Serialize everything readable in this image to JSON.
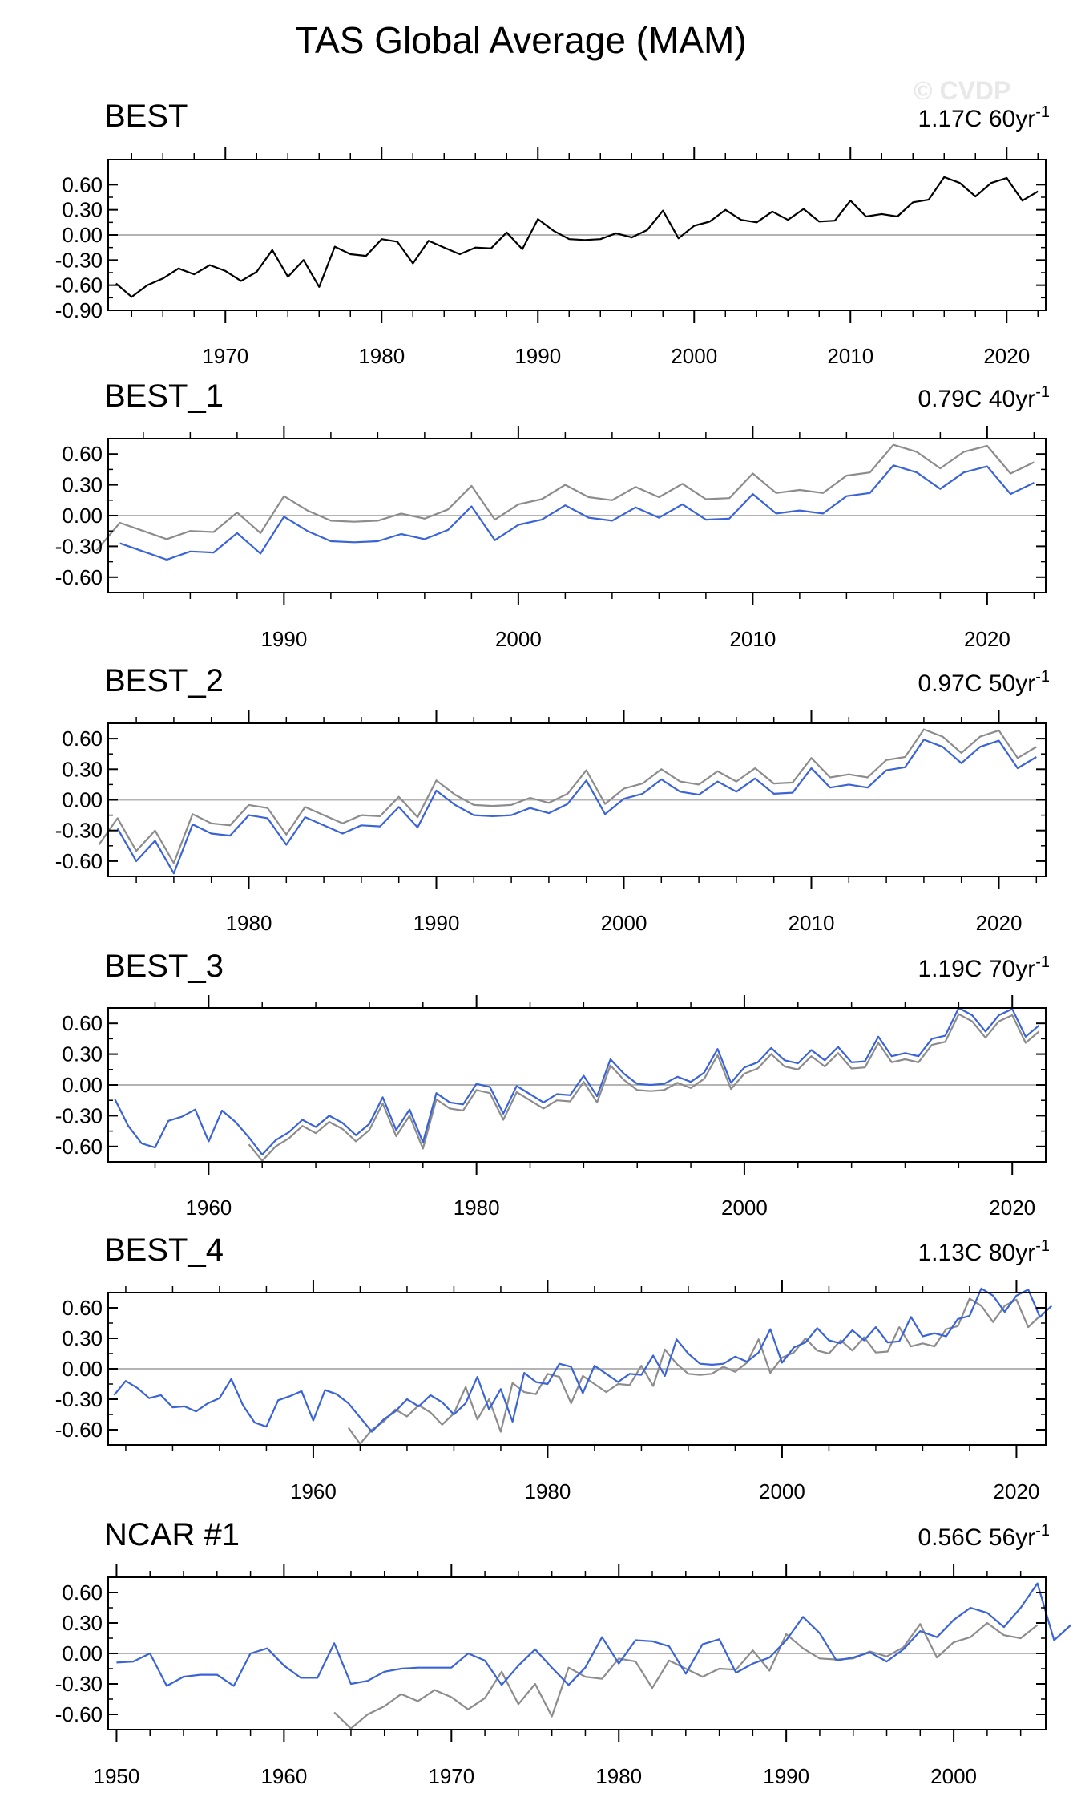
{
  "title": "TAS Global Average (MAM)",
  "watermark": "© CVDP",
  "colors": {
    "observed": "#000000",
    "reference": "#8c8c8c",
    "model": "#3a63d6",
    "zero": "#b4b4b4"
  },
  "chart_data": [
    {
      "type": "line",
      "title": "BEST",
      "trend_label": "1.17C 60yr",
      "trend_superscript": "-1",
      "xlim": [
        1962.5,
        2022.5
      ],
      "ylim": [
        -0.9,
        0.9
      ],
      "yticks": [
        "0.60",
        "0.30",
        "0.00",
        "-0.30",
        "-0.60",
        "-0.90"
      ],
      "xticks": [
        1970,
        1980,
        1990,
        2000,
        2010,
        2020
      ],
      "series": [
        {
          "role": "observed",
          "x_start": 1963,
          "values": [
            -0.58,
            -0.74,
            -0.6,
            -0.52,
            -0.4,
            -0.47,
            -0.36,
            -0.43,
            -0.55,
            -0.44,
            -0.18,
            -0.5,
            -0.3,
            -0.62,
            -0.14,
            -0.23,
            -0.25,
            -0.05,
            -0.08,
            -0.34,
            -0.07,
            -0.15,
            -0.23,
            -0.15,
            -0.16,
            0.03,
            -0.17,
            0.19,
            0.05,
            -0.05,
            -0.06,
            -0.05,
            0.02,
            -0.03,
            0.06,
            0.29,
            -0.04,
            0.11,
            0.16,
            0.3,
            0.18,
            0.15,
            0.28,
            0.18,
            0.31,
            0.16,
            0.17,
            0.41,
            0.22,
            0.25,
            0.22,
            0.39,
            0.42,
            0.69,
            0.62,
            0.46,
            0.62,
            0.68,
            0.41,
            0.52
          ]
        }
      ]
    },
    {
      "type": "line",
      "title": "BEST_1",
      "trend_label": "0.79C 40yr",
      "trend_superscript": "-1",
      "xlim": [
        1982.5,
        2022.5
      ],
      "ylim": [
        -0.75,
        0.75
      ],
      "yticks": [
        "0.60",
        "0.30",
        "0.00",
        "-0.30",
        "-0.60"
      ],
      "xticks": [
        1990,
        2000,
        2010,
        2020
      ],
      "series": [
        {
          "role": "reference",
          "x_start": 1982,
          "values": [
            -0.34,
            -0.07,
            -0.15,
            -0.23,
            -0.15,
            -0.16,
            0.03,
            -0.17,
            0.19,
            0.05,
            -0.05,
            -0.06,
            -0.05,
            0.02,
            -0.03,
            0.06,
            0.29,
            -0.04,
            0.11,
            0.16,
            0.3,
            0.18,
            0.15,
            0.28,
            0.18,
            0.31,
            0.16,
            0.17,
            0.41,
            0.22,
            0.25,
            0.22,
            0.39,
            0.42,
            0.69,
            0.62,
            0.46,
            0.62,
            0.68,
            0.41,
            0.52
          ]
        },
        {
          "role": "model",
          "x_start": 1983,
          "values": [
            -0.27,
            -0.35,
            -0.43,
            -0.35,
            -0.36,
            -0.17,
            -0.37,
            -0.01,
            -0.15,
            -0.25,
            -0.26,
            -0.25,
            -0.18,
            -0.23,
            -0.14,
            0.09,
            -0.24,
            -0.09,
            -0.04,
            0.1,
            -0.02,
            -0.05,
            0.08,
            -0.02,
            0.11,
            -0.04,
            -0.03,
            0.21,
            0.02,
            0.05,
            0.02,
            0.19,
            0.22,
            0.49,
            0.42,
            0.26,
            0.42,
            0.48,
            0.21,
            0.32
          ]
        }
      ]
    },
    {
      "type": "line",
      "title": "BEST_2",
      "trend_label": "0.97C 50yr",
      "trend_superscript": "-1",
      "xlim": [
        1972.5,
        2022.5
      ],
      "ylim": [
        -0.75,
        0.75
      ],
      "yticks": [
        "0.60",
        "0.30",
        "0.00",
        "-0.30",
        "-0.60"
      ],
      "xticks": [
        1980,
        1990,
        2000,
        2010,
        2020
      ],
      "series": [
        {
          "role": "reference",
          "x_start": 1972,
          "values": [
            -0.44,
            -0.18,
            -0.5,
            -0.3,
            -0.62,
            -0.14,
            -0.23,
            -0.25,
            -0.05,
            -0.08,
            -0.34,
            -0.07,
            -0.15,
            -0.23,
            -0.15,
            -0.16,
            0.03,
            -0.17,
            0.19,
            0.05,
            -0.05,
            -0.06,
            -0.05,
            0.02,
            -0.03,
            0.06,
            0.29,
            -0.04,
            0.11,
            0.16,
            0.3,
            0.18,
            0.15,
            0.28,
            0.18,
            0.31,
            0.16,
            0.17,
            0.41,
            0.22,
            0.25,
            0.22,
            0.39,
            0.42,
            0.69,
            0.62,
            0.46,
            0.62,
            0.68,
            0.41,
            0.52
          ]
        },
        {
          "role": "model",
          "x_start": 1973,
          "values": [
            -0.28,
            -0.6,
            -0.4,
            -0.72,
            -0.24,
            -0.33,
            -0.35,
            -0.15,
            -0.18,
            -0.44,
            -0.17,
            -0.25,
            -0.33,
            -0.25,
            -0.26,
            -0.07,
            -0.27,
            0.09,
            -0.05,
            -0.15,
            -0.16,
            -0.15,
            -0.08,
            -0.13,
            -0.04,
            0.19,
            -0.14,
            0.01,
            0.06,
            0.2,
            0.08,
            0.05,
            0.18,
            0.08,
            0.21,
            0.06,
            0.07,
            0.31,
            0.12,
            0.15,
            0.12,
            0.29,
            0.32,
            0.59,
            0.52,
            0.36,
            0.52,
            0.58,
            0.31,
            0.42
          ]
        }
      ]
    },
    {
      "type": "line",
      "title": "BEST_3",
      "trend_label": "1.19C 70yr",
      "trend_superscript": "-1",
      "xlim": [
        1952.5,
        2022.5
      ],
      "ylim": [
        -0.75,
        0.75
      ],
      "yticks": [
        "0.60",
        "0.30",
        "0.00",
        "-0.30",
        "-0.60"
      ],
      "xticks": [
        1960,
        1980,
        2000,
        2020
      ],
      "series": [
        {
          "role": "reference",
          "x_start": 1963,
          "values": [
            -0.58,
            -0.74,
            -0.6,
            -0.52,
            -0.4,
            -0.47,
            -0.36,
            -0.43,
            -0.55,
            -0.44,
            -0.18,
            -0.5,
            -0.3,
            -0.62,
            -0.14,
            -0.23,
            -0.25,
            -0.05,
            -0.08,
            -0.34,
            -0.07,
            -0.15,
            -0.23,
            -0.15,
            -0.16,
            0.03,
            -0.17,
            0.19,
            0.05,
            -0.05,
            -0.06,
            -0.05,
            0.02,
            -0.03,
            0.06,
            0.29,
            -0.04,
            0.11,
            0.16,
            0.3,
            0.18,
            0.15,
            0.28,
            0.18,
            0.31,
            0.16,
            0.17,
            0.41,
            0.22,
            0.25,
            0.22,
            0.39,
            0.42,
            0.69,
            0.62,
            0.46,
            0.62,
            0.68,
            0.41,
            0.52
          ]
        },
        {
          "role": "model",
          "x_start": 1953,
          "values": [
            -0.14,
            -0.4,
            -0.57,
            -0.61,
            -0.35,
            -0.31,
            -0.24,
            -0.55,
            -0.25,
            -0.36,
            -0.51,
            -0.68,
            -0.54,
            -0.46,
            -0.34,
            -0.41,
            -0.3,
            -0.37,
            -0.49,
            -0.38,
            -0.12,
            -0.44,
            -0.24,
            -0.56,
            -0.08,
            -0.17,
            -0.19,
            0.01,
            -0.02,
            -0.28,
            -0.01,
            -0.09,
            -0.17,
            -0.09,
            -0.1,
            0.09,
            -0.11,
            0.25,
            0.11,
            0.01,
            0.0,
            0.01,
            0.08,
            0.03,
            0.12,
            0.35,
            0.02,
            0.17,
            0.22,
            0.36,
            0.24,
            0.21,
            0.34,
            0.24,
            0.37,
            0.22,
            0.23,
            0.47,
            0.28,
            0.31,
            0.28,
            0.45,
            0.48,
            0.75,
            0.68,
            0.52,
            0.68,
            0.74,
            0.47,
            0.58
          ]
        }
      ]
    },
    {
      "type": "line",
      "title": "BEST_4",
      "trend_label": "1.13C 80yr",
      "trend_superscript": "-1",
      "xlim": [
        1942.5,
        2022.5
      ],
      "ylim": [
        -0.75,
        0.75
      ],
      "yticks": [
        "0.60",
        "0.30",
        "0.00",
        "-0.30",
        "-0.60"
      ],
      "xticks": [
        1960,
        1980,
        2000,
        2020
      ],
      "series": [
        {
          "role": "reference",
          "x_start": 1963,
          "values": [
            -0.58,
            -0.74,
            -0.6,
            -0.52,
            -0.4,
            -0.47,
            -0.36,
            -0.43,
            -0.55,
            -0.44,
            -0.18,
            -0.5,
            -0.3,
            -0.62,
            -0.14,
            -0.23,
            -0.25,
            -0.05,
            -0.08,
            -0.34,
            -0.07,
            -0.15,
            -0.23,
            -0.15,
            -0.16,
            0.03,
            -0.17,
            0.19,
            0.05,
            -0.05,
            -0.06,
            -0.05,
            0.02,
            -0.03,
            0.06,
            0.29,
            -0.04,
            0.11,
            0.16,
            0.3,
            0.18,
            0.15,
            0.28,
            0.18,
            0.31,
            0.16,
            0.17,
            0.41,
            0.22,
            0.25,
            0.22,
            0.39,
            0.42,
            0.69,
            0.62,
            0.46,
            0.62,
            0.68,
            0.41,
            0.52
          ]
        },
        {
          "role": "model",
          "x_start": 1943,
          "values": [
            -0.26,
            -0.12,
            -0.19,
            -0.29,
            -0.26,
            -0.38,
            -0.37,
            -0.42,
            -0.34,
            -0.29,
            -0.1,
            -0.36,
            -0.53,
            -0.57,
            -0.31,
            -0.27,
            -0.22,
            -0.51,
            -0.21,
            -0.25,
            -0.34,
            -0.48,
            -0.62,
            -0.5,
            -0.42,
            -0.3,
            -0.37,
            -0.26,
            -0.33,
            -0.45,
            -0.34,
            -0.08,
            -0.4,
            -0.2,
            -0.52,
            -0.04,
            -0.13,
            -0.15,
            0.05,
            0.02,
            -0.24,
            0.03,
            -0.05,
            -0.13,
            -0.05,
            -0.06,
            0.13,
            -0.07,
            0.29,
            0.15,
            0.05,
            0.04,
            0.05,
            0.12,
            0.07,
            0.16,
            0.39,
            0.06,
            0.21,
            0.26,
            0.4,
            0.28,
            0.25,
            0.38,
            0.28,
            0.41,
            0.26,
            0.27,
            0.51,
            0.32,
            0.35,
            0.32,
            0.49,
            0.52,
            0.79,
            0.72,
            0.56,
            0.72,
            0.78,
            0.51,
            0.62
          ]
        }
      ]
    },
    {
      "type": "line",
      "title": "NCAR #1",
      "trend_label": "0.56C 56yr",
      "trend_superscript": "-1",
      "xlim": [
        1949.5,
        2005.5
      ],
      "ylim": [
        -0.75,
        0.75
      ],
      "yticks": [
        "0.60",
        "0.30",
        "0.00",
        "-0.30",
        "-0.60"
      ],
      "xticks": [
        1950,
        1960,
        1970,
        1980,
        1990,
        2000
      ],
      "series": [
        {
          "role": "reference",
          "x_start": 1963,
          "values": [
            -0.58,
            -0.74,
            -0.6,
            -0.52,
            -0.4,
            -0.47,
            -0.36,
            -0.43,
            -0.55,
            -0.44,
            -0.18,
            -0.5,
            -0.3,
            -0.62,
            -0.14,
            -0.23,
            -0.25,
            -0.05,
            -0.08,
            -0.34,
            -0.07,
            -0.15,
            -0.23,
            -0.15,
            -0.16,
            0.03,
            -0.17,
            0.19,
            0.05,
            -0.05,
            -0.06,
            -0.05,
            0.02,
            -0.03,
            0.06,
            0.29,
            -0.04,
            0.11,
            0.16,
            0.3,
            0.18,
            0.15,
            0.28
          ]
        },
        {
          "role": "model",
          "x_start": 1950,
          "values": [
            -0.09,
            -0.08,
            0.0,
            -0.32,
            -0.23,
            -0.21,
            -0.21,
            -0.32,
            0.0,
            0.05,
            -0.12,
            -0.24,
            -0.24,
            0.1,
            -0.3,
            -0.27,
            -0.18,
            -0.15,
            -0.14,
            -0.14,
            -0.14,
            0.0,
            -0.07,
            -0.31,
            -0.12,
            0.04,
            -0.14,
            -0.31,
            -0.14,
            0.16,
            -0.1,
            0.13,
            0.12,
            0.07,
            -0.2,
            0.09,
            0.14,
            -0.19,
            -0.1,
            -0.04,
            0.13,
            0.36,
            0.2,
            -0.07,
            -0.04,
            0.01,
            -0.08,
            0.04,
            0.22,
            0.16,
            0.33,
            0.45,
            0.4,
            0.26,
            0.45,
            0.69,
            0.13,
            0.28
          ]
        }
      ]
    }
  ]
}
